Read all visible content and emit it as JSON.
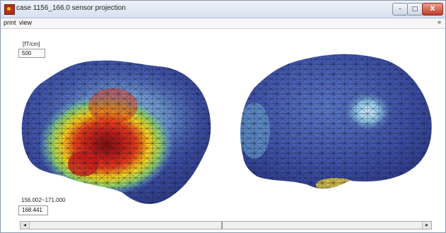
{
  "window": {
    "title": "case 1156_166.0 sensor projection",
    "min_label": "–",
    "max_label": "□",
    "close_label": "X"
  },
  "menu": {
    "print": "print",
    "view": "view",
    "overflow": "»"
  },
  "scale": {
    "unit": "[fT/cm]",
    "value": "500"
  },
  "time": {
    "range": "156.002~171.000",
    "value": "168.441"
  },
  "scroll": {
    "left_arrow": "◂",
    "right_arrow": "▸",
    "position_fraction": 0.49
  },
  "colors": {
    "brain_base": "#3b4ea3",
    "hot_core": "#8b1a1a",
    "hot_mid": "#e02a1a",
    "warm": "#f5d21c",
    "cool": "#5fb9e0",
    "mesh": "#1a1a2a"
  },
  "icons": {
    "app": "app-logo-icon"
  }
}
